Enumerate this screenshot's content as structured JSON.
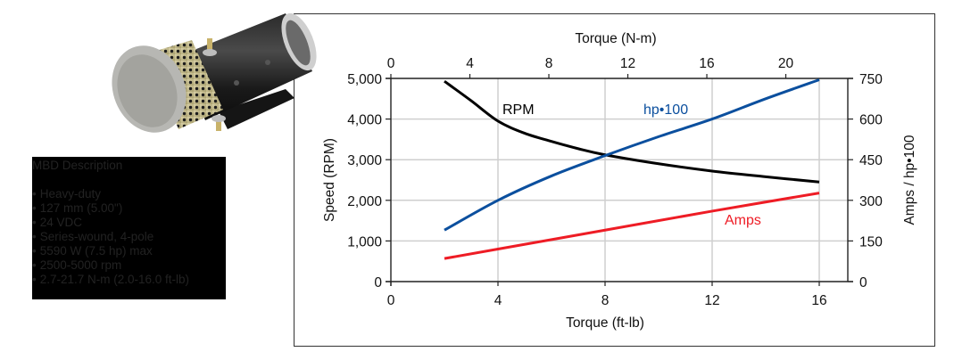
{
  "description": {
    "title": "MBD Description",
    "bullets": [
      "Heavy-duty",
      "127 mm (5.00\")",
      "24 VDC",
      "Series-wound, 4-pole",
      "5590 W (7.5 hp) max",
      "2500-5000 rpm",
      "2.7-21.7 N-m (2.0-16.0 ft-lb)"
    ]
  },
  "chart_data": {
    "type": "line",
    "title": "",
    "xlabel": "Torque (ft-lb)",
    "x2label": "Torque (N-m)",
    "ylabel": "Speed (RPM)",
    "y2label": "Amps / hp•100",
    "xlim": [
      0,
      17.07
    ],
    "xticks": [
      0,
      4,
      8,
      12,
      16
    ],
    "x2ticks": [
      0,
      4,
      8,
      12,
      16,
      20
    ],
    "ylim": [
      0,
      5000
    ],
    "yticks": [
      "0",
      "1,000",
      "2,000",
      "3,000",
      "4,000",
      "5,000"
    ],
    "y2lim": [
      0,
      750
    ],
    "y2ticks": [
      "0",
      "150",
      "300",
      "450",
      "600",
      "750"
    ],
    "grid": true,
    "series": [
      {
        "name": "RPM",
        "axis": "left",
        "color": "#000000",
        "x": [
          2,
          3,
          4,
          5,
          6,
          7,
          8,
          10,
          12,
          14,
          16
        ],
        "values": [
          4930,
          4450,
          3950,
          3650,
          3450,
          3270,
          3120,
          2900,
          2720,
          2580,
          2450
        ]
      },
      {
        "name": "hp•100",
        "axis": "right",
        "color": "#0b4f9e",
        "x": [
          2,
          4,
          6,
          8,
          10,
          12,
          14,
          16
        ],
        "values": [
          190,
          300,
          390,
          465,
          535,
          600,
          675,
          745
        ]
      },
      {
        "name": "Amps",
        "axis": "right",
        "color": "#ee1c25",
        "x": [
          2,
          4,
          8,
          12,
          16
        ],
        "values": [
          85,
          120,
          190,
          260,
          327
        ]
      }
    ],
    "annotations": [
      {
        "text": "RPM",
        "color": "#000000"
      },
      {
        "text": "hp•100",
        "color": "#0b4f9e"
      },
      {
        "text": "Amps",
        "color": "#ee1c25"
      }
    ]
  }
}
